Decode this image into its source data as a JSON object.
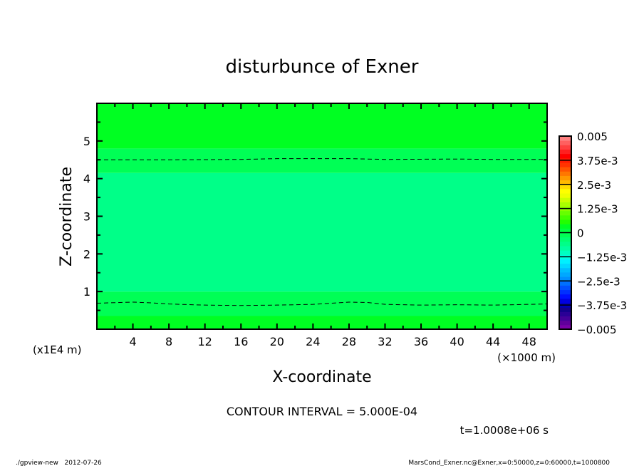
{
  "chart_data": {
    "type": "heatmap",
    "subtype": "filled-contour",
    "title": "disturbunce of Exner",
    "xlabel": "X-coordinate",
    "ylabel": "Z-coordinate",
    "x_unit_label": "(×1000 m)",
    "y_unit_label": "(x1E4 m)",
    "xlim": [
      0,
      50
    ],
    "ylim": [
      0,
      6
    ],
    "x_ticks": [
      4,
      8,
      12,
      16,
      20,
      24,
      28,
      32,
      36,
      40,
      44,
      48
    ],
    "y_ticks": [
      1,
      2,
      3,
      4,
      5
    ],
    "contour_interval_label": "CONTOUR INTERVAL = 5.000E-04",
    "time_label": "t=1.0008e+06 s",
    "footer_left": "./gpview-new   2012-07-26",
    "footer_right": "MarsCond_Exner.nc@Exner,x=0:50000,z=0:60000,t=1000800",
    "colorbar": {
      "min": -0.005,
      "max": 0.005,
      "labels": [
        "-0.005",
        "-3.75e-3",
        "-2.5e-3",
        "-1.25e-3",
        "0",
        "1.25e-3",
        "2.5e-3",
        "3.75e-3",
        "0.005"
      ],
      "colors": [
        "#7a00a8",
        "#60009c",
        "#44009a",
        "#2a0096",
        "#14008c",
        "#0000b8",
        "#0000e0",
        "#0010ff",
        "#0030ff",
        "#0050ff",
        "#0070ff",
        "#0090ff",
        "#00a8ff",
        "#00bcff",
        "#00d8ff",
        "#00f0ff",
        "#00ffe0",
        "#00ffc0",
        "#00ffa0",
        "#00ff88",
        "#00ff70",
        "#00ff55",
        "#00ff40",
        "#00ff22",
        "#22ff00",
        "#44ff00",
        "#66ff00",
        "#88ff00",
        "#aaff00",
        "#ccff00",
        "#eeff00",
        "#ffff00",
        "#ffdd00",
        "#ffbb00",
        "#ff9900",
        "#ff7700",
        "#ff5500",
        "#ff3300",
        "#ff1a00",
        "#ff0000",
        "#ff2020",
        "#ff4040",
        "#ff6060",
        "#ff8080"
      ]
    },
    "bands": [
      {
        "z0": 0,
        "z1": 0.35,
        "color": "#00ff22",
        "range": [
          0,
          0.0005
        ]
      },
      {
        "z0": 0.35,
        "z1": 1.0,
        "color": "#00ff55",
        "range": [
          -0.0005,
          0
        ]
      },
      {
        "z0": 1.0,
        "z1": 4.15,
        "color": "#00ff88",
        "range": [
          -0.001,
          -0.0005
        ]
      },
      {
        "z0": 4.15,
        "z1": 4.8,
        "color": "#00ff55",
        "range": [
          -0.0005,
          0
        ]
      },
      {
        "z0": 4.8,
        "z1": 6,
        "color": "#00ff22",
        "range": [
          0,
          0.0005
        ]
      }
    ],
    "contours": [
      {
        "style": "dashed",
        "points": [
          [
            0,
            4.5
          ],
          [
            8,
            4.5
          ],
          [
            16,
            4.51
          ],
          [
            20,
            4.53
          ],
          [
            28,
            4.53
          ],
          [
            32,
            4.51
          ],
          [
            40,
            4.52
          ],
          [
            44,
            4.51
          ],
          [
            50,
            4.51
          ]
        ]
      },
      {
        "style": "dashed",
        "points": [
          [
            0,
            0.69
          ],
          [
            4,
            0.72
          ],
          [
            6,
            0.7
          ],
          [
            8,
            0.67
          ],
          [
            12,
            0.64
          ],
          [
            16,
            0.63
          ],
          [
            20,
            0.64
          ],
          [
            24,
            0.66
          ],
          [
            28,
            0.72
          ],
          [
            30,
            0.71
          ],
          [
            32,
            0.66
          ],
          [
            36,
            0.64
          ],
          [
            40,
            0.65
          ],
          [
            44,
            0.64
          ],
          [
            48,
            0.66
          ],
          [
            50,
            0.67
          ]
        ]
      }
    ]
  }
}
